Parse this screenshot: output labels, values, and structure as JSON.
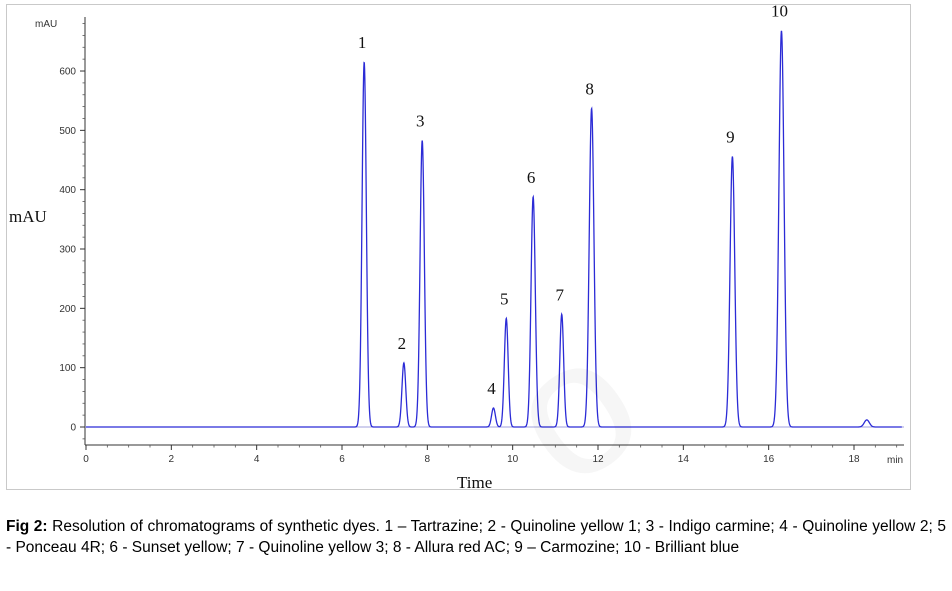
{
  "chart_data": {
    "type": "line",
    "xlabel": "Time",
    "x_unit_label": "min",
    "ylabel": "mAU",
    "y_unit_label_top": "mAU",
    "xlim": [
      0,
      19.6
    ],
    "ylim": [
      -25,
      700
    ],
    "x_ticks": [
      0,
      2,
      4,
      6,
      8,
      10,
      12,
      14,
      16,
      18
    ],
    "y_ticks": [
      0,
      100,
      200,
      300,
      400,
      500,
      600
    ],
    "line_color": "#2b2bd6",
    "baseline_color": "#8080d0",
    "peaks": [
      {
        "label": "1",
        "time": 6.52,
        "height": 615,
        "width": 0.05
      },
      {
        "label": "2",
        "time": 7.45,
        "height": 108,
        "width": 0.045
      },
      {
        "label": "3",
        "time": 7.88,
        "height": 483,
        "width": 0.05
      },
      {
        "label": "4",
        "time": 9.55,
        "height": 32,
        "width": 0.045
      },
      {
        "label": "5",
        "time": 9.85,
        "height": 183,
        "width": 0.045
      },
      {
        "label": "6",
        "time": 10.48,
        "height": 388,
        "width": 0.05
      },
      {
        "label": "7",
        "time": 11.15,
        "height": 190,
        "width": 0.045
      },
      {
        "label": "8",
        "time": 11.85,
        "height": 537,
        "width": 0.055
      },
      {
        "label": "9",
        "time": 15.15,
        "height": 456,
        "width": 0.055
      },
      {
        "label": "10",
        "time": 16.3,
        "height": 668,
        "width": 0.06
      },
      {
        "label": "",
        "time": 18.3,
        "height": 12,
        "width": 0.06
      }
    ]
  },
  "caption": {
    "prefix": "Fig 2:",
    "text": " Resolution of chromatograms of synthetic dyes. 1 – Tartrazine; 2 - Quinoline yellow 1; 3 - Indigo carmine; 4 - Quinoline yellow 2; 5 - Ponceau 4R; 6 - Sunset yellow; 7 - Quinoline yellow 3; 8 - Allura red AC; 9 – Carmozine; 10 - Brilliant blue"
  }
}
